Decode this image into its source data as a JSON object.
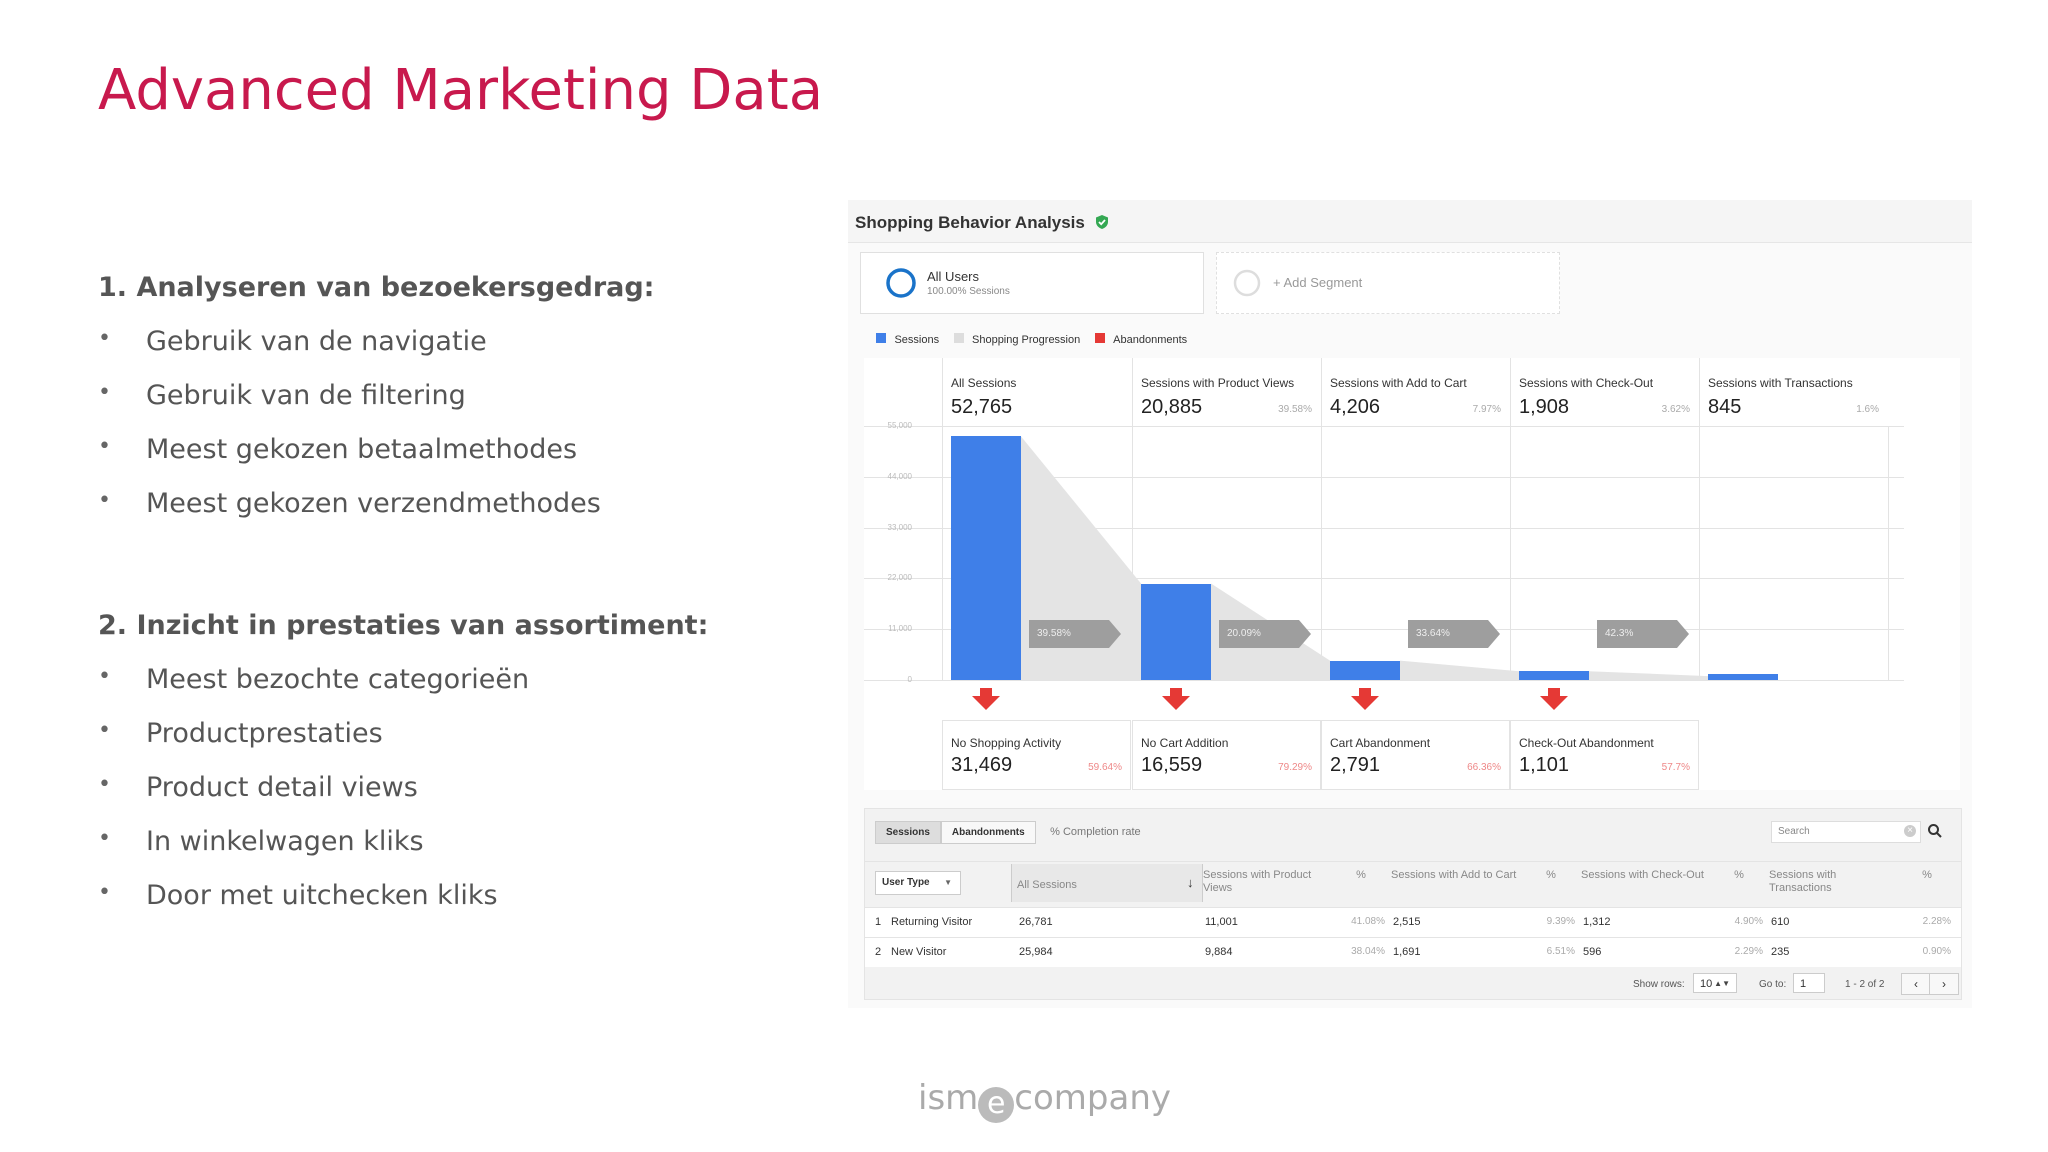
{
  "slide": {
    "title": "Advanced Marketing Data",
    "section1": {
      "heading": "1. Analyseren van bezoekersgedrag:",
      "bullets": [
        "Gebruik van de navigatie",
        "Gebruik van de filtering",
        "Meest gekozen betaalmethodes",
        "Meest gekozen verzendmethodes"
      ]
    },
    "section2": {
      "heading": "2. Inzicht in prestaties van assortiment:",
      "bullets": [
        "Meest bezochte categorieën",
        "Productprestaties",
        "Product detail views",
        "In winkelwagen kliks",
        "Door met uitchecken kliks"
      ]
    },
    "bullet_char": "•",
    "logo": {
      "pre": "ism",
      "mid": "e",
      "post": "company"
    }
  },
  "report": {
    "title": "Shopping Behavior Analysis",
    "segment": {
      "name": "All Users",
      "sub": "100.00% Sessions"
    },
    "add_segment": "+ Add Segment",
    "legend": [
      {
        "label": "Sessions",
        "color": "#3f7fe8"
      },
      {
        "label": "Shopping Progression",
        "color": "#dddddd"
      },
      {
        "label": "Abandonments",
        "color": "#e53935"
      }
    ],
    "stages": [
      {
        "label": "All Sessions",
        "value": "52,765",
        "pct": ""
      },
      {
        "label": "Sessions with Product Views",
        "value": "20,885",
        "pct": "39.58%"
      },
      {
        "label": "Sessions with Add to Cart",
        "value": "4,206",
        "pct": "7.97%"
      },
      {
        "label": "Sessions with Check-Out",
        "value": "1,908",
        "pct": "3.62%"
      },
      {
        "label": "Sessions with Transactions",
        "value": "845",
        "pct": "1.6%"
      }
    ],
    "y_ticks": [
      "55,000",
      "44,000",
      "33,000",
      "22,000",
      "11,000",
      "0"
    ],
    "progressions": [
      "39.58%",
      "20.09%",
      "33.64%",
      "42.3%"
    ],
    "abandonments": [
      {
        "label": "No Shopping Activity",
        "value": "31,469",
        "pct": "59.64%"
      },
      {
        "label": "No Cart Addition",
        "value": "16,559",
        "pct": "79.29%"
      },
      {
        "label": "Cart Abandonment",
        "value": "2,791",
        "pct": "66.36%"
      },
      {
        "label": "Check-Out Abandonment",
        "value": "1,101",
        "pct": "57.7%"
      }
    ],
    "table": {
      "tabs": [
        "Sessions",
        "Abandonments",
        "% Completion rate"
      ],
      "search_placeholder": "Search",
      "dimension": "User Type",
      "columns": [
        "All Sessions",
        "Sessions with Product Views",
        "%",
        "Sessions with Add to Cart",
        "%",
        "Sessions with Check-Out",
        "%",
        "Sessions with Transactions",
        "%"
      ],
      "rows": [
        {
          "idx": "1",
          "name": "Returning Visitor",
          "cells": [
            "26,781",
            "11,001",
            "41.08%",
            "2,515",
            "9.39%",
            "1,312",
            "4.90%",
            "610",
            "2.28%"
          ]
        },
        {
          "idx": "2",
          "name": "New Visitor",
          "cells": [
            "25,984",
            "9,884",
            "38.04%",
            "1,691",
            "6.51%",
            "596",
            "2.29%",
            "235",
            "0.90%"
          ]
        }
      ],
      "show_rows_label": "Show rows:",
      "show_rows_value": "10",
      "goto_label": "Go to:",
      "goto_value": "1",
      "range": "1 - 2 of 2"
    }
  }
}
